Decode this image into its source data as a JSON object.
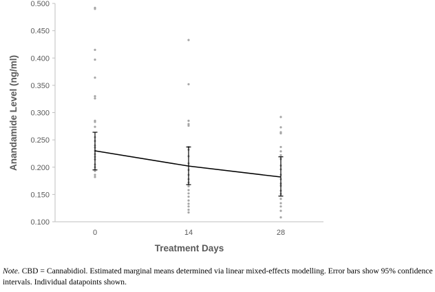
{
  "chart_data": {
    "type": "line",
    "ylabel": "Anandamide Level (ng/ml)",
    "xlabel": "Treatment Days",
    "categories": [
      "0",
      "14",
      "28"
    ],
    "ylim": [
      0.1,
      0.5
    ],
    "yticks": [
      "0.100",
      "0.150",
      "0.200",
      "0.250",
      "0.300",
      "0.350",
      "0.400",
      "0.450",
      "0.500"
    ],
    "grid": false,
    "legend": "none",
    "colors": {
      "line": "#000000",
      "points": "#a6a6a6",
      "axis": "#bfbfbf",
      "text": "#595959"
    },
    "series": [
      {
        "values": [
          0.23,
          0.202,
          0.182
        ],
        "ci_lower": [
          0.195,
          0.168,
          0.147
        ],
        "ci_upper": [
          0.264,
          0.237,
          0.219
        ]
      }
    ],
    "datapoints": [
      [
        0.492,
        0.49,
        0.415,
        0.397,
        0.364,
        0.33,
        0.326,
        0.285,
        0.283,
        0.274,
        0.255,
        0.248,
        0.24,
        0.236,
        0.23,
        0.224,
        0.219,
        0.214,
        0.205,
        0.2,
        0.193,
        0.186,
        0.182
      ],
      [
        0.433,
        0.352,
        0.285,
        0.279,
        0.276,
        0.237,
        0.232,
        0.22,
        0.207,
        0.195,
        0.186,
        0.178,
        0.172,
        0.165,
        0.158,
        0.152,
        0.146,
        0.139,
        0.133,
        0.128,
        0.122,
        0.117
      ],
      [
        0.292,
        0.273,
        0.264,
        0.262,
        0.237,
        0.229,
        0.222,
        0.215,
        0.203,
        0.196,
        0.186,
        0.178,
        0.17,
        0.166,
        0.157,
        0.151,
        0.142,
        0.134,
        0.128,
        0.12,
        0.108
      ]
    ]
  },
  "note": {
    "label": "Note.",
    "text": " CBD = Cannabidiol. Estimated marginal means determined via linear mixed-effects modelling. Error bars show 95% confidence intervals. Individual datapoints shown."
  }
}
